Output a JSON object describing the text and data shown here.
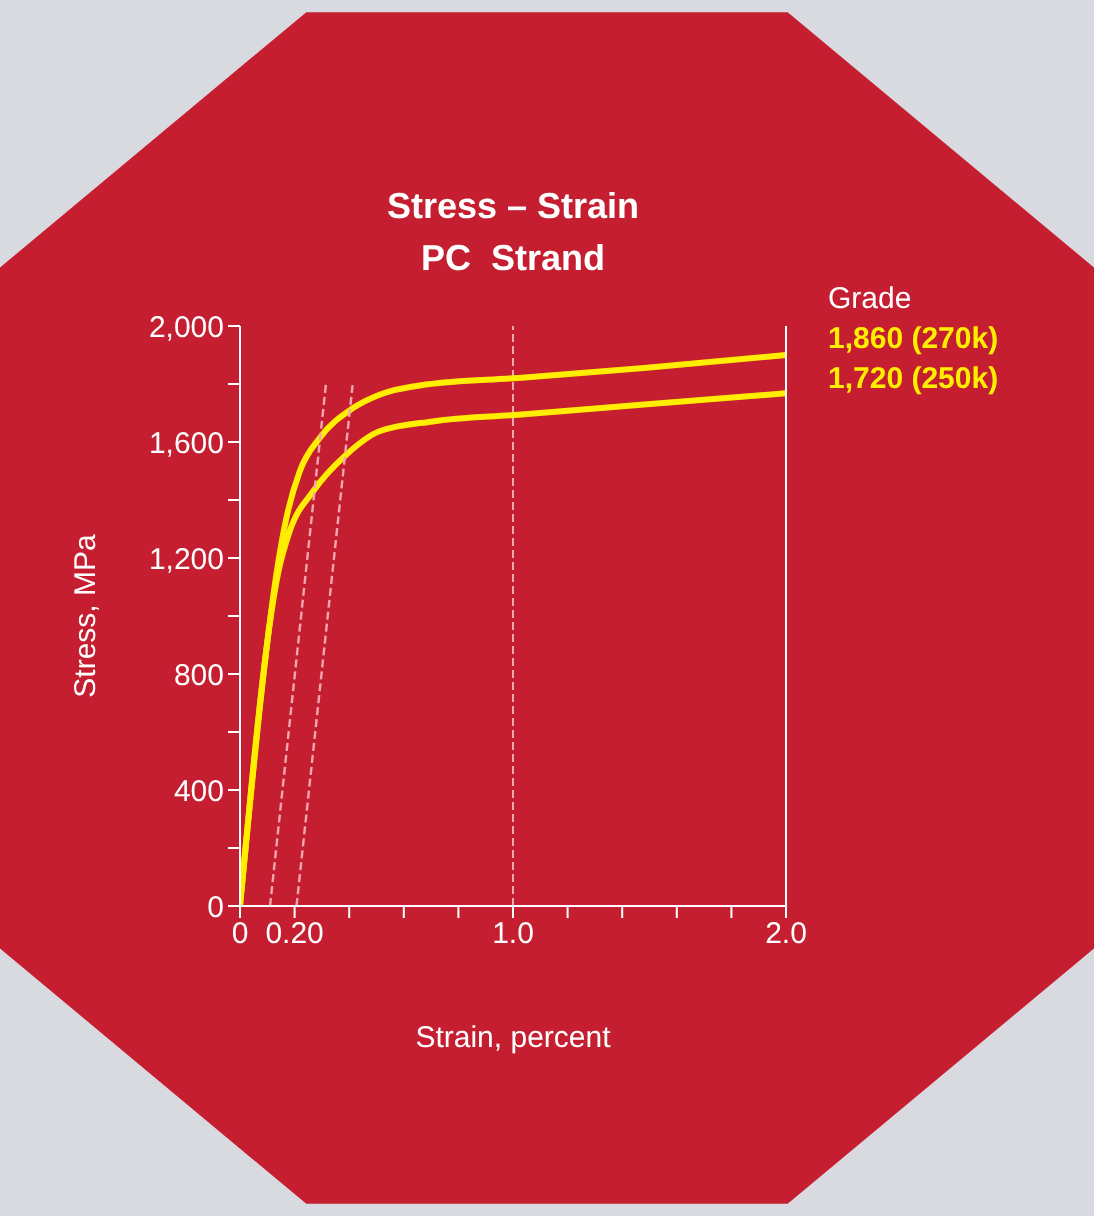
{
  "chart_data": {
    "type": "line",
    "title": "Stress – Strain\nPC  Strand",
    "xlabel": "Strain, percent",
    "ylabel": "Stress, MPa",
    "legend_title": "Grade",
    "legend": "right",
    "grid": false,
    "marker": "none",
    "xlim": [
      0,
      2.0
    ],
    "ylim": [
      0,
      2000
    ],
    "xticks": [
      0,
      {
        "value": 0.2,
        "label": "0.20"
      },
      {
        "value": 0.4,
        "label": null
      },
      {
        "value": 0.6,
        "label": null
      },
      {
        "value": 0.8,
        "label": null
      },
      {
        "value": 1.0,
        "label": "1.0"
      },
      {
        "value": 1.2,
        "label": null
      },
      {
        "value": 1.4,
        "label": null
      },
      {
        "value": 1.6,
        "label": null
      },
      {
        "value": 1.8,
        "label": null
      },
      {
        "value": 2.0,
        "label": "2.0"
      }
    ],
    "yticks": [
      0,
      {
        "value": 200,
        "label": null
      },
      400,
      {
        "value": 600,
        "label": null
      },
      800,
      {
        "value": 1000,
        "label": null
      },
      {
        "value": 1200,
        "label": "1,200"
      },
      {
        "value": 1400,
        "label": null
      },
      {
        "value": 1600,
        "label": "1,600"
      },
      {
        "value": 1800,
        "label": null
      },
      {
        "value": 2000,
        "label": "2,000"
      }
    ],
    "series": [
      {
        "name": "1,860 (270k)",
        "color": "#ffee00",
        "line_style": "solid",
        "x": [
          0,
          0.151,
          0.17,
          0.219,
          0.292,
          0.414,
          0.511,
          0.681,
          1.02,
          1.48,
          2.0
        ],
        "values": [
          0,
          1246,
          1338,
          1499,
          1614,
          1717,
          1763,
          1798,
          1821,
          1855,
          1900
        ]
      },
      {
        "name": "1,720 (250k)",
        "color": "#ffee00",
        "line_style": "solid",
        "x": [
          0,
          0.141,
          0.182,
          0.268,
          0.389,
          0.511,
          0.706,
          1.02,
          1.48,
          2.0
        ],
        "values": [
          0,
          1154,
          1292,
          1430,
          1556,
          1637,
          1671,
          1694,
          1729,
          1768
        ]
      },
      {
        "color": "#f2a7b0",
        "line_style": "dashed",
        "x": [
          0.11,
          0.316
        ],
        "values": [
          0,
          1810
        ]
      },
      {
        "color": "#f2a7b0",
        "line_style": "dashed",
        "x": [
          0.207,
          0.414
        ],
        "values": [
          0,
          1810
        ]
      }
    ],
    "ref_lines": [
      {
        "axis": "x",
        "value": 1.0,
        "color": "#f2a7b0",
        "line_style": "dashed"
      }
    ]
  }
}
